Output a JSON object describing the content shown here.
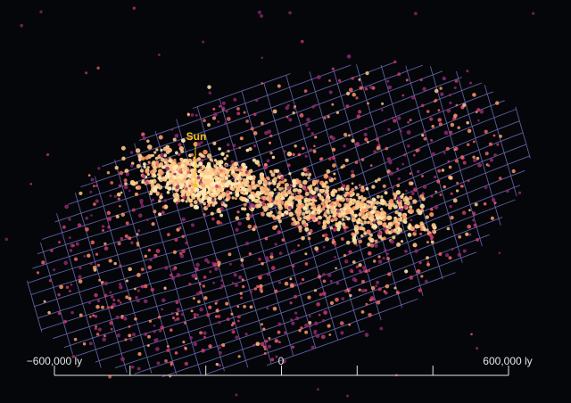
{
  "marker": {
    "label": "Sun",
    "color": "#f2c618"
  },
  "scale_bar": {
    "left_label": "−600,000 ly",
    "center_label": "0",
    "right_label": "600,000 ly",
    "tick_count": 7,
    "color": "#e6e6e6"
  },
  "colors": {
    "background": "#05060a",
    "grid": "#6f6fb8",
    "point_palette": [
      "#ffe9b0",
      "#ffc98a",
      "#ff9b6a",
      "#f0666a",
      "#c9386f",
      "#8e2a6e"
    ]
  }
}
